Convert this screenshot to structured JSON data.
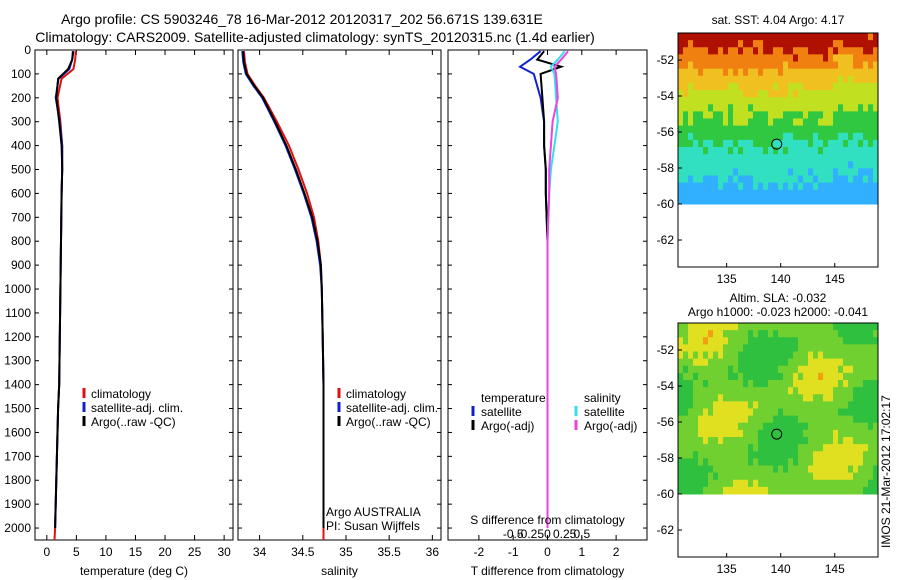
{
  "header": {
    "line1": "Argo profile: CS 5903246_78 16-Mar-2012 20120317_202 56.671S 139.631E",
    "line2": "Climatology: CARS2009. Satellite-adjusted climatology: synTS_20120315.nc (1.4d earlier)"
  },
  "side_text": "IMOS 21-Mar-2012 17:02:17",
  "colors": {
    "climatology": "#e01010",
    "satellite": "#1020d0",
    "argo": "#000000",
    "salinity_satellite": "#30e0f0",
    "salinity_argo": "#f040e0"
  },
  "chart_data": [
    {
      "type": "line",
      "id": "temperature",
      "xlabel": "temperature (deg C)",
      "ylabel": "",
      "xlim": [
        -2,
        31.5
      ],
      "ylim": [
        2050,
        0
      ],
      "xticks": [
        0,
        5,
        10,
        15,
        20,
        25,
        30
      ],
      "yticks": [
        0,
        100,
        200,
        300,
        400,
        500,
        600,
        700,
        800,
        900,
        1000,
        1100,
        1200,
        1300,
        1400,
        1500,
        1600,
        1700,
        1800,
        1900,
        2000
      ],
      "legend": {
        "position": "lower-center",
        "entries": [
          "climatology",
          "satellite-adj. clim.",
          "Argo(..raw -QC)"
        ]
      },
      "series": [
        {
          "name": "climatology",
          "color": "#e01010",
          "x": [
            4.9,
            4.8,
            4.5,
            2.5,
            1.8,
            2.3,
            2.6,
            2.6,
            2.5,
            2.4,
            2.3,
            2.2,
            2.1,
            1.9,
            1.8,
            1.7,
            1.6,
            1.5,
            1.4,
            1.3
          ],
          "y": [
            5,
            40,
            80,
            120,
            200,
            300,
            400,
            500,
            600,
            800,
            1000,
            1200,
            1400,
            1500,
            1600,
            1700,
            1800,
            1900,
            2000,
            2050
          ]
        },
        {
          "name": "satellite-adj. clim.",
          "color": "#1020d0",
          "x": [
            4.4,
            4.3,
            3.8,
            2.0,
            1.5,
            2.2,
            2.6,
            2.6,
            2.5,
            2.4,
            2.3,
            2.2,
            2.1,
            1.9,
            1.8,
            1.7,
            1.6,
            1.5,
            1.4
          ],
          "y": [
            5,
            40,
            80,
            120,
            200,
            300,
            400,
            500,
            600,
            800,
            1000,
            1200,
            1400,
            1500,
            1600,
            1700,
            1800,
            1900,
            2000
          ]
        },
        {
          "name": "Argo(..raw -QC)",
          "color": "#000000",
          "x": [
            4.5,
            4.3,
            3.6,
            1.9,
            1.6,
            2.1,
            2.5,
            2.6,
            2.5,
            2.4,
            2.3,
            2.2,
            2.1,
            1.9,
            1.8,
            1.7,
            1.6,
            1.5,
            1.4
          ],
          "y": [
            5,
            40,
            80,
            120,
            200,
            300,
            400,
            500,
            600,
            800,
            1000,
            1200,
            1400,
            1500,
            1600,
            1700,
            1800,
            1900,
            2000
          ]
        }
      ]
    },
    {
      "type": "line",
      "id": "salinity",
      "xlabel": "salinity",
      "xlim": [
        33.75,
        36.1
      ],
      "ylim": [
        2050,
        0
      ],
      "xticks": [
        34,
        34.5,
        35,
        35.5,
        36
      ],
      "legend": {
        "position": "lower-right",
        "entries": [
          "climatology",
          "satellite-adj. clim.",
          "Argo(..raw -QC)"
        ]
      },
      "annotations": [
        "Argo AUSTRALIA",
        "PI: Susan Wijffels"
      ],
      "series": [
        {
          "name": "climatology",
          "color": "#e01010",
          "x": [
            33.82,
            33.83,
            33.86,
            33.95,
            34.05,
            34.2,
            34.34,
            34.45,
            34.55,
            34.63,
            34.68,
            34.71,
            34.72,
            34.73,
            34.74,
            34.74,
            34.74,
            34.74,
            34.74,
            34.74
          ],
          "y": [
            5,
            50,
            100,
            150,
            200,
            300,
            400,
            500,
            600,
            700,
            800,
            900,
            1000,
            1200,
            1400,
            1600,
            1800,
            1900,
            2000,
            2050
          ]
        },
        {
          "name": "satellite-adj. clim.",
          "color": "#1020d0",
          "x": [
            33.8,
            33.81,
            33.84,
            33.93,
            34.03,
            34.17,
            34.3,
            34.41,
            34.51,
            34.6,
            34.66,
            34.7,
            34.72,
            34.73,
            34.74,
            34.74,
            34.74,
            34.74,
            34.74
          ],
          "y": [
            5,
            50,
            100,
            150,
            200,
            300,
            400,
            500,
            600,
            700,
            800,
            900,
            1000,
            1200,
            1400,
            1600,
            1800,
            1900,
            2000
          ]
        },
        {
          "name": "Argo(..raw -QC)",
          "color": "#000000",
          "x": [
            33.81,
            33.82,
            33.85,
            33.94,
            34.04,
            34.18,
            34.31,
            34.42,
            34.52,
            34.61,
            34.67,
            34.71,
            34.72,
            34.73,
            34.74,
            34.74,
            34.74,
            34.74,
            34.74
          ],
          "y": [
            5,
            50,
            100,
            150,
            200,
            300,
            400,
            500,
            600,
            700,
            800,
            900,
            1000,
            1200,
            1400,
            1600,
            1800,
            1900,
            2000
          ]
        }
      ]
    },
    {
      "type": "line",
      "id": "difference",
      "xlabel": "T difference from climatology",
      "xlabel_top": "S difference from climatology",
      "xlim": [
        -2.9,
        2.9
      ],
      "ylim": [
        2050,
        0
      ],
      "xticks": [
        -2,
        -1,
        0,
        1,
        2
      ],
      "xtick_labels": [
        "-2",
        "-1",
        "0",
        "1",
        "2"
      ],
      "xticks_S": [
        -0.5,
        -0.25,
        0,
        0.25,
        0.5
      ],
      "xtick_labels_S": [
        "-0.5",
        "-0.25",
        "0",
        "0.25",
        "0.5"
      ],
      "legend": {
        "position": "lower-center",
        "groups": [
          {
            "title": "temperature",
            "entries": [
              "satellite",
              "Argo(-adj)"
            ]
          },
          {
            "title": "salinity",
            "entries": [
              "satellite",
              "Argo(-adj)"
            ]
          }
        ]
      },
      "series": [
        {
          "name": "temperature satellite",
          "color": "#1020d0",
          "x": [
            -0.2,
            -0.5,
            -0.8,
            -0.4,
            -0.2,
            -0.1,
            -0.1,
            -0.05,
            -0.05,
            0,
            0,
            0,
            0,
            0,
            0,
            0,
            0,
            0,
            0
          ],
          "y": [
            5,
            40,
            70,
            100,
            200,
            300,
            400,
            500,
            600,
            800,
            1000,
            1200,
            1400,
            1500,
            1600,
            1700,
            1800,
            1900,
            2000
          ]
        },
        {
          "name": "temperature Argo(-adj)",
          "color": "#000000",
          "x": [
            -0.1,
            -0.3,
            0.4,
            -0.2,
            -0.15,
            -0.1,
            -0.1,
            -0.05,
            -0.05,
            0,
            0,
            0,
            0,
            0,
            0,
            0,
            0,
            0,
            0
          ],
          "y": [
            5,
            40,
            70,
            100,
            200,
            300,
            400,
            500,
            600,
            800,
            1000,
            1200,
            1400,
            1500,
            1600,
            1700,
            1800,
            1900,
            2000
          ]
        },
        {
          "name": "salinity satellite",
          "color": "#30e0f0",
          "x": [
            0.5,
            0.3,
            0.1,
            0.2,
            0.25,
            0.3,
            0.2,
            0.1,
            0.05,
            0,
            0,
            0,
            0,
            0,
            0,
            0,
            0,
            0,
            0
          ],
          "y": [
            5,
            40,
            70,
            100,
            200,
            300,
            400,
            500,
            600,
            800,
            1000,
            1200,
            1400,
            1500,
            1600,
            1700,
            1800,
            1900,
            2000
          ]
        },
        {
          "name": "salinity Argo(-adj)",
          "color": "#f040e0",
          "x": [
            0.6,
            0.4,
            0.2,
            0.25,
            0.3,
            0.15,
            0.1,
            0.05,
            0.05,
            0,
            0,
            0,
            0,
            0,
            0,
            0,
            0,
            0,
            0
          ],
          "y": [
            5,
            40,
            70,
            100,
            200,
            300,
            400,
            500,
            600,
            800,
            1000,
            1200,
            1400,
            1500,
            1600,
            1700,
            1800,
            1900,
            2000
          ]
        }
      ]
    },
    {
      "type": "heatmap",
      "id": "sst_map",
      "title": "sat. SST: 4.04 Argo: 4.17",
      "xlim": [
        130.5,
        149
      ],
      "ylim": [
        -63.5,
        -50.5
      ],
      "xticks": [
        135,
        140,
        145
      ],
      "yticks": [
        -52,
        -54,
        -56,
        -58,
        -60,
        -62
      ],
      "data_extent_y": [
        -60,
        -50.5
      ],
      "marker": {
        "lon": 139.631,
        "lat": -56.671
      }
    },
    {
      "type": "heatmap",
      "id": "sla_map",
      "title": "Altim. SLA: -0.032",
      "subtitle": "Argo h1000: -0.023 h2000: -0.041",
      "xlim": [
        130.5,
        149
      ],
      "ylim": [
        -63.5,
        -50.5
      ],
      "xticks": [
        135,
        140,
        145
      ],
      "yticks": [
        -52,
        -54,
        -56,
        -58,
        -60,
        -62
      ],
      "data_extent_y": [
        -60,
        -50.5
      ],
      "marker": {
        "lon": 139.631,
        "lat": -56.671
      }
    }
  ]
}
